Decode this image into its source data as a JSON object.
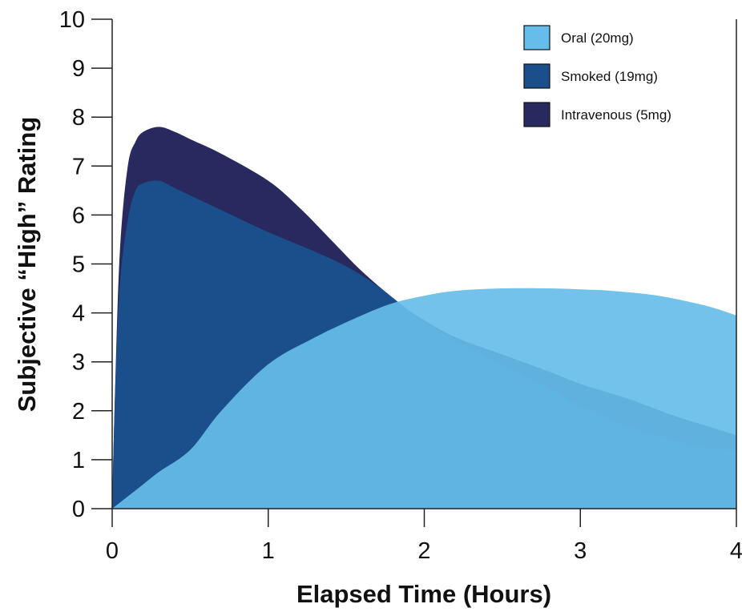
{
  "chart_data": {
    "type": "area",
    "xlabel": "Elapsed Time (Hours)",
    "ylabel": "Subjective “High” Rating",
    "xlim": [
      0,
      4
    ],
    "ylim": [
      0,
      10
    ],
    "xticks": [
      "0",
      "1",
      "2",
      "3",
      "4"
    ],
    "yticks": [
      "0",
      "1",
      "2",
      "3",
      "4",
      "5",
      "6",
      "7",
      "8",
      "9",
      "10"
    ],
    "grid": false,
    "legend_position": "top-right",
    "series": [
      {
        "name": "Oral (20mg)",
        "color": "#66bde9",
        "x": [
          0,
          0.1,
          0.2,
          0.3,
          0.5,
          0.7,
          1.0,
          1.3,
          1.6,
          1.8,
          2.0,
          2.2,
          2.5,
          2.8,
          3.0,
          3.2,
          3.5,
          3.8,
          4.0
        ],
        "y": [
          0,
          0.25,
          0.5,
          0.75,
          1.2,
          2.0,
          2.95,
          3.5,
          3.95,
          4.2,
          4.35,
          4.45,
          4.5,
          4.5,
          4.48,
          4.45,
          4.35,
          4.15,
          3.95
        ]
      },
      {
        "name": "Smoked (19mg)",
        "color": "#1b4f8c",
        "x": [
          0,
          0.02,
          0.05,
          0.1,
          0.15,
          0.2,
          0.3,
          0.4,
          0.5,
          0.7,
          1.0,
          1.3,
          1.5,
          1.7,
          1.9,
          2.0,
          2.2,
          2.5,
          2.8,
          3.0,
          3.3,
          3.6,
          3.8,
          4.0
        ],
        "y": [
          0,
          2.5,
          4.6,
          5.9,
          6.5,
          6.65,
          6.7,
          6.55,
          6.4,
          6.1,
          5.65,
          5.25,
          4.95,
          4.55,
          4.05,
          3.8,
          3.45,
          2.95,
          2.45,
          2.1,
          1.7,
          1.4,
          1.25,
          1.2
        ]
      },
      {
        "name": "Intravenous (5mg)",
        "color": "#27295f",
        "x": [
          0,
          0.02,
          0.05,
          0.1,
          0.15,
          0.2,
          0.3,
          0.4,
          0.5,
          0.7,
          1.0,
          1.2,
          1.4,
          1.6,
          1.8,
          1.9,
          2.0,
          2.2,
          2.5,
          2.8,
          3.0,
          3.3,
          3.6,
          3.8,
          4.0
        ],
        "y": [
          0,
          2.6,
          5.3,
          7.0,
          7.5,
          7.7,
          7.8,
          7.7,
          7.55,
          7.25,
          6.7,
          6.15,
          5.5,
          4.85,
          4.3,
          4.05,
          3.85,
          3.5,
          3.15,
          2.8,
          2.55,
          2.25,
          1.9,
          1.7,
          1.5
        ]
      }
    ]
  }
}
